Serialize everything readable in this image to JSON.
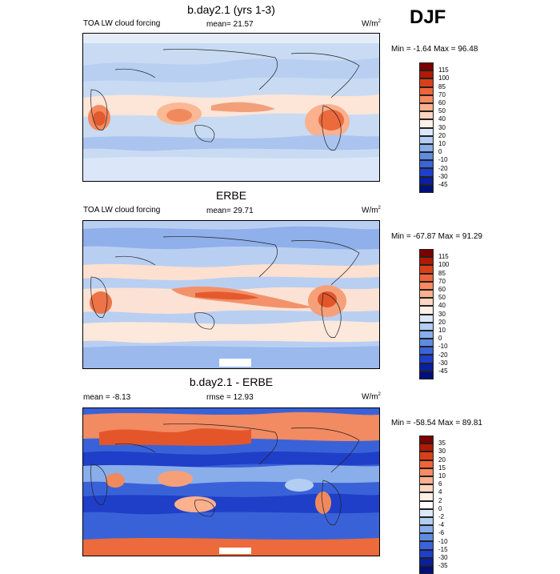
{
  "season": "DJF",
  "panels": [
    {
      "title": "b.day2.1 (yrs 1-3)",
      "left_label": "TOA LW cloud forcing",
      "mid_label": "mean=  21.57",
      "units_main": "W/m",
      "units_sup": "2",
      "minmax": "Min =  -1.64 Max =  96.48",
      "colorbar": {
        "labels": [
          "115",
          "100",
          "85",
          "70",
          "60",
          "50",
          "40",
          "30",
          "20",
          "10",
          "0",
          "-10",
          "-20",
          "-30",
          "-45"
        ],
        "colors": [
          "#7a0000",
          "#b01a00",
          "#d8401a",
          "#f0643a",
          "#f88a62",
          "#fbb08e",
          "#fdd5c0",
          "#fff0e8",
          "#dce8fa",
          "#b3cdf3",
          "#8aaeea",
          "#5f8be0",
          "#3a64d8",
          "#1f3fc8",
          "#0a209e",
          "#00107a"
        ]
      }
    },
    {
      "title": "ERBE",
      "left_label": "TOA LW cloud forcing",
      "mid_label": "mean=  29.71",
      "units_main": "W/m",
      "units_sup": "2",
      "minmax": "Min = -67.87 Max =  91.29",
      "colorbar": {
        "labels": [
          "115",
          "100",
          "85",
          "70",
          "60",
          "50",
          "40",
          "30",
          "20",
          "10",
          "0",
          "-10",
          "-20",
          "-30",
          "-45"
        ],
        "colors": [
          "#7a0000",
          "#b01a00",
          "#d8401a",
          "#f0643a",
          "#f88a62",
          "#fbb08e",
          "#fdd5c0",
          "#fff0e8",
          "#dce8fa",
          "#b3cdf3",
          "#8aaeea",
          "#5f8be0",
          "#3a64d8",
          "#1f3fc8",
          "#0a209e",
          "#00107a"
        ]
      }
    },
    {
      "title": "b.day2.1 - ERBE",
      "left_label": "mean =  -8.13",
      "mid_label": "rmse =  12.93",
      "units_main": "W/m",
      "units_sup": "2",
      "minmax": "Min = -58.54 Max =  89.81",
      "colorbar": {
        "labels": [
          "35",
          "30",
          "20",
          "15",
          "10",
          "6",
          "4",
          "2",
          "0",
          "-2",
          "-4",
          "-6",
          "-10",
          "-15",
          "-30",
          "-35"
        ],
        "colors": [
          "#7a0000",
          "#b01a00",
          "#d8401a",
          "#f0643a",
          "#f88a62",
          "#fbb08e",
          "#fdd5c0",
          "#fff0e8",
          "#ffffff",
          "#dce8fa",
          "#b3cdf3",
          "#8aaeea",
          "#5f8be0",
          "#3a64d8",
          "#1f3fc8",
          "#0a209e",
          "#00107a"
        ]
      }
    }
  ]
}
